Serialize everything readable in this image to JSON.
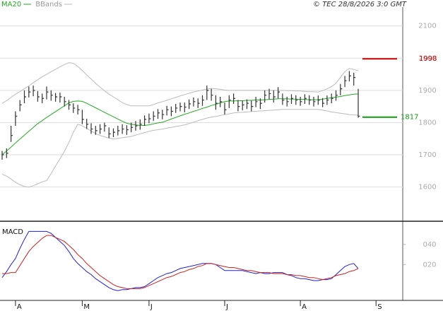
{
  "chart_data": [
    {
      "type": "ohlc",
      "source": "© TEC 28/8/2026 3:0 GMT",
      "ylim": [
        1496,
        2163
      ],
      "yticks": [
        1600,
        1700,
        1800,
        1900,
        2000,
        2100
      ],
      "grid": true,
      "ohlc": {
        "color": "#333333",
        "high": [
          1712,
          1720,
          1790,
          1835,
          1870,
          1900,
          1912,
          1915,
          1898,
          1890,
          1912,
          1900,
          1892,
          1893,
          1880,
          1870,
          1860,
          1855,
          1840,
          1812,
          1798,
          1790,
          1795,
          1800,
          1785,
          1782,
          1790,
          1795,
          1792,
          1800,
          1805,
          1810,
          1822,
          1828,
          1835,
          1842,
          1840,
          1852,
          1850,
          1858,
          1862,
          1862,
          1872,
          1878,
          1875,
          1885,
          1915,
          1905,
          1885,
          1880,
          1862,
          1885,
          1890,
          1870,
          1868,
          1872,
          1868,
          1880,
          1875,
          1900,
          1905,
          1900,
          1910,
          1890,
          1880,
          1888,
          1885,
          1880,
          1888,
          1885,
          1880,
          1884,
          1876,
          1884,
          1890,
          1900,
          1920,
          1945,
          1960,
          1955,
          1905,
          null,
          null,
          null,
          null
        ],
        "low": [
          1685,
          1690,
          1740,
          1790,
          1835,
          1860,
          1878,
          1882,
          1865,
          1860,
          1872,
          1868,
          1865,
          1862,
          1850,
          1840,
          1830,
          1825,
          1795,
          1780,
          1765,
          1762,
          1765,
          1772,
          1752,
          1755,
          1760,
          1765,
          1762,
          1770,
          1775,
          1778,
          1790,
          1798,
          1805,
          1812,
          1810,
          1822,
          1820,
          1830,
          1835,
          1832,
          1842,
          1850,
          1845,
          1852,
          1870,
          1868,
          1840,
          1848,
          1825,
          1845,
          1858,
          1835,
          1838,
          1842,
          1835,
          1848,
          1842,
          1862,
          1872,
          1862,
          1875,
          1855,
          1850,
          1858,
          1855,
          1852,
          1858,
          1855,
          1850,
          1855,
          1848,
          1855,
          1860,
          1868,
          1885,
          1910,
          1928,
          1915,
          1815,
          null,
          null,
          null,
          null
        ],
        "close": [
          1700,
          1705,
          1760,
          1820,
          1855,
          1880,
          1895,
          1900,
          1880,
          1875,
          1895,
          1885,
          1880,
          1880,
          1865,
          1855,
          1845,
          1840,
          1810,
          1795,
          1780,
          1775,
          1780,
          1790,
          1765,
          1770,
          1775,
          1780,
          1778,
          1785,
          1790,
          1795,
          1810,
          1812,
          1820,
          1830,
          1825,
          1840,
          1835,
          1845,
          1850,
          1848,
          1858,
          1865,
          1860,
          1870,
          1900,
          1885,
          1860,
          1865,
          1840,
          1870,
          1875,
          1850,
          1855,
          1860,
          1850,
          1865,
          1860,
          1885,
          1890,
          1880,
          1895,
          1870,
          1865,
          1875,
          1870,
          1865,
          1875,
          1870,
          1865,
          1870,
          1860,
          1870,
          1875,
          1885,
          1905,
          1930,
          1945,
          1940,
          1820,
          null,
          null,
          null,
          null
        ]
      },
      "series": [
        {
          "name": "MA20",
          "color": "#22aa22",
          "values": [
            1700,
            1712,
            1724,
            1737,
            1749,
            1761,
            1773,
            1785,
            1797,
            1806,
            1816,
            1825,
            1834,
            1843,
            1852,
            1861,
            1866,
            1867,
            1866,
            1860,
            1853,
            1846,
            1839,
            1832,
            1825,
            1818,
            1811,
            1804,
            1798,
            1795,
            1793,
            1791,
            1791,
            1793,
            1796,
            1799,
            1801,
            1806,
            1811,
            1816,
            1821,
            1826,
            1830,
            1835,
            1839,
            1844,
            1848,
            1853,
            1857,
            1861,
            1865,
            1867,
            1867,
            1868,
            1868,
            1869,
            1869,
            1870,
            1870,
            1871,
            1872,
            1873,
            1874,
            1874,
            1874,
            1873,
            1873,
            1872,
            1872,
            1871,
            1871,
            1871,
            1873,
            1875,
            1877,
            1879,
            1881,
            1884,
            1886,
            1888,
            1889,
            null,
            null,
            null,
            null
          ]
        },
        {
          "name": "BBands",
          "color": "#bbbbbb",
          "upper": [
            1860,
            1868,
            1878,
            1888,
            1896,
            1905,
            1914,
            1924,
            1933,
            1942,
            1950,
            1958,
            1965,
            1973,
            1980,
            1986,
            1984,
            1974,
            1962,
            1948,
            1935,
            1922,
            1910,
            1899,
            1888,
            1880,
            1871,
            1862,
            1856,
            1852,
            1852,
            1852,
            1852,
            1852,
            1856,
            1861,
            1865,
            1869,
            1874,
            1878,
            1883,
            1887,
            1891,
            1895,
            1898,
            1901,
            1904,
            1906,
            1905,
            1903,
            1901,
            1900,
            1900,
            1900,
            1900,
            1900,
            1900,
            1900,
            1900,
            1900,
            1900,
            1900,
            1900,
            1900,
            1899,
            1899,
            1898,
            1898,
            1897,
            1896,
            1896,
            1895,
            1899,
            1905,
            1912,
            1922,
            1940,
            1958,
            1968,
            1965,
            1961,
            null,
            null,
            null,
            null
          ],
          "lower": [
            1640,
            1634,
            1625,
            1615,
            1607,
            1602,
            1600,
            1604,
            1610,
            1616,
            1620,
            1642,
            1665,
            1688,
            1711,
            1738,
            1770,
            1795,
            1790,
            1782,
            1774,
            1766,
            1760,
            1756,
            1752,
            1749,
            1751,
            1753,
            1755,
            1757,
            1761,
            1765,
            1769,
            1773,
            1776,
            1778,
            1780,
            1783,
            1785,
            1788,
            1790,
            1793,
            1797,
            1801,
            1806,
            1810,
            1814,
            1817,
            1819,
            1822,
            1825,
            1827,
            1830,
            1831,
            1832,
            1833,
            1834,
            1835,
            1836,
            1837,
            1838,
            1839,
            1840,
            1841,
            1841,
            1841,
            1841,
            1841,
            1841,
            1841,
            1841,
            1841,
            1839,
            1836,
            1833,
            1831,
            1829,
            1827,
            1825,
            1824,
            1823,
            null,
            null,
            null,
            null
          ]
        }
      ],
      "levels": [
        {
          "value": 1998,
          "color": "#cc0000"
        },
        {
          "value": 1817,
          "color": "#119911"
        }
      ]
    },
    {
      "type": "line",
      "title": "MACD",
      "categories": [
        null,
        null,
        null,
        "A",
        null,
        null,
        null,
        null,
        null,
        null,
        null,
        null,
        null,
        null,
        null,
        null,
        null,
        null,
        "M",
        null,
        null,
        null,
        null,
        null,
        null,
        null,
        null,
        null,
        null,
        null,
        null,
        null,
        null,
        "J",
        null,
        null,
        null,
        null,
        null,
        null,
        null,
        null,
        null,
        null,
        null,
        null,
        null,
        null,
        null,
        null,
        "J",
        null,
        null,
        null,
        null,
        null,
        null,
        null,
        null,
        null,
        null,
        null,
        null,
        null,
        null,
        null,
        null,
        "A",
        null,
        null,
        null,
        null,
        null,
        null,
        null,
        null,
        null,
        null,
        null,
        null,
        null,
        null,
        null,
        null,
        "S"
      ],
      "ylim": [
        -15,
        61
      ],
      "yticks": [
        {
          "value": 40,
          "label": "040"
        },
        {
          "value": 20,
          "label": "020"
        }
      ],
      "series": [
        {
          "color": "#2222cc",
          "values": [
            7,
            13,
            20,
            26,
            36,
            45,
            53,
            53,
            53,
            53,
            53,
            51,
            47,
            43,
            39,
            33,
            26,
            21,
            17,
            13,
            10,
            6,
            3,
            0,
            -3,
            -5,
            -6,
            -5,
            -5,
            -4,
            -3,
            -3,
            -2,
            1,
            4,
            7,
            9,
            11,
            12,
            14,
            16,
            17,
            18,
            19,
            20,
            21,
            21,
            21,
            20,
            17,
            14,
            14,
            14,
            14,
            14,
            13,
            12,
            11,
            12,
            11,
            11,
            12,
            12,
            12,
            10,
            9,
            7,
            6,
            6,
            5,
            4,
            4,
            5,
            5,
            6,
            10,
            14,
            18,
            20,
            21,
            16,
            null,
            null,
            null,
            null
          ]
        },
        {
          "color": "#cc2222",
          "values": [
            11,
            11,
            12,
            12,
            19,
            26,
            33,
            38,
            42,
            46,
            49,
            49,
            47,
            45,
            43,
            39,
            35,
            30,
            26,
            21,
            17,
            13,
            9,
            6,
            3,
            0,
            -2,
            -3,
            -4,
            -4,
            -4,
            -4,
            -3,
            -1,
            1,
            3,
            5,
            7,
            8,
            10,
            12,
            13,
            15,
            16,
            18,
            19,
            21,
            21,
            20,
            19,
            18,
            17,
            17,
            16,
            15,
            14,
            14,
            13,
            12,
            12,
            12,
            11,
            11,
            11,
            10,
            10,
            9,
            9,
            8,
            7,
            7,
            6,
            5,
            6,
            7,
            9,
            10,
            11,
            13,
            14,
            16,
            null,
            null,
            null,
            null
          ]
        }
      ]
    }
  ]
}
